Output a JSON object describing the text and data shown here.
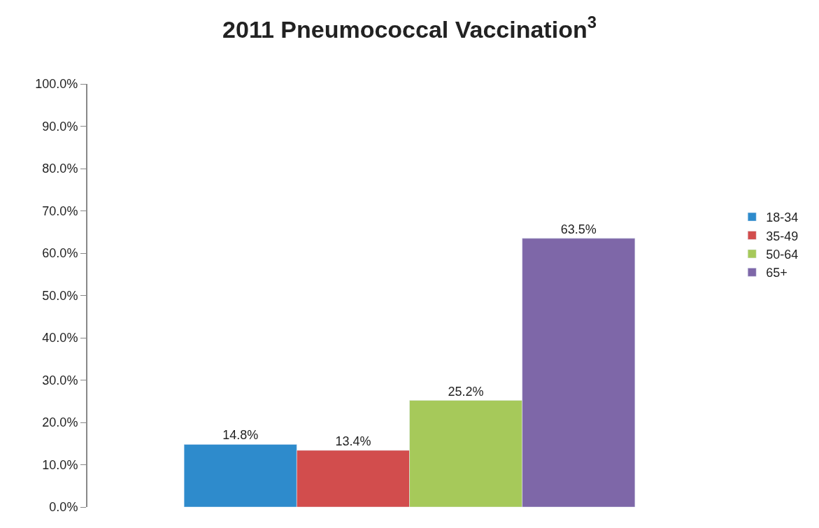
{
  "chart_data": {
    "type": "bar",
    "title": "2011 Pneumococcal Vaccination$^{3}$",
    "categories": [
      null
    ],
    "series": [
      {
        "name": "18-34",
        "color": "#2e8bcc",
        "values": [
          14.8
        ],
        "value_labels": [
          "14.8%"
        ]
      },
      {
        "name": "35-49",
        "color": "#d24d4d",
        "values": [
          13.4
        ],
        "value_labels": [
          "13.4%"
        ]
      },
      {
        "name": "50-64",
        "color": "#a6c95a",
        "values": [
          25.2
        ],
        "value_labels": [
          "25.2%"
        ]
      },
      {
        "name": "65+",
        "color": "#7e67a8",
        "values": [
          63.5
        ],
        "value_labels": [
          "63.5%"
        ]
      }
    ],
    "ylim": [
      0,
      100
    ],
    "yticks": [
      {
        "value": 0,
        "label": "0.0%"
      },
      {
        "value": 10,
        "label": "10.0%"
      },
      {
        "value": 20,
        "label": "20.0%"
      },
      {
        "value": 30,
        "label": "30.0%"
      },
      {
        "value": 40,
        "label": "40.0%"
      },
      {
        "value": 50,
        "label": "50.0%"
      },
      {
        "value": 60,
        "label": "60.0%"
      },
      {
        "value": 70,
        "label": "70.0%"
      },
      {
        "value": 80,
        "label": "80.0%"
      },
      {
        "value": 90,
        "label": "90.0%"
      },
      {
        "value": 100,
        "label": "100.0%"
      }
    ],
    "legend": "right"
  }
}
